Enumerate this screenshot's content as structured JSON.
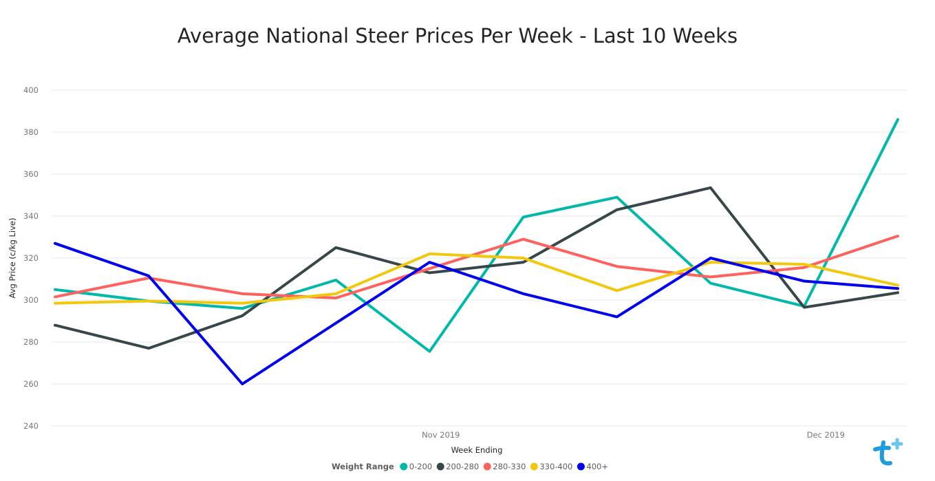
{
  "chart_data": {
    "type": "line",
    "title": "Average National Steer Prices Per Week - Last 10 Weeks",
    "xlabel": "Week Ending",
    "ylabel": "Avg Price (c/kg Live)",
    "ylim": [
      240,
      400
    ],
    "yticks": [
      240,
      260,
      280,
      300,
      320,
      340,
      360,
      380,
      400
    ],
    "x_tick_labels": [
      "Nov 2019",
      "Dec 2019"
    ],
    "x_tick_positions": [
      4.12,
      8.23
    ],
    "grid": true,
    "legend_title": "Weight Range",
    "legend_position": "bottom",
    "x": [
      0,
      1,
      2,
      3,
      4,
      5,
      6,
      7,
      8,
      9
    ],
    "series": [
      {
        "name": "0-200",
        "color": "#01B8AA",
        "values": [
          305,
          299.5,
          296,
          309.5,
          275.5,
          339.5,
          349,
          308,
          297,
          386
        ]
      },
      {
        "name": "200-280",
        "color": "#374649",
        "values": [
          288,
          277,
          292.5,
          325,
          313,
          318,
          343,
          353.5,
          296.5,
          303.5
        ]
      },
      {
        "name": "280-330",
        "color": "#FD625E",
        "values": [
          301.5,
          310.5,
          303,
          301,
          315,
          329,
          316,
          311,
          315.5,
          330.5
        ]
      },
      {
        "name": "330-400",
        "color": "#F2C80F",
        "values": [
          298.5,
          299.5,
          298.5,
          303,
          322,
          320,
          304.5,
          318,
          317,
          307
        ]
      },
      {
        "name": "400+",
        "color": "#0000EE",
        "values": [
          327,
          311.5,
          260,
          289,
          318,
          303,
          292,
          320,
          309,
          305.5
        ]
      }
    ]
  },
  "logo": {
    "name": "brand-logo",
    "color": "#1f9bde"
  }
}
